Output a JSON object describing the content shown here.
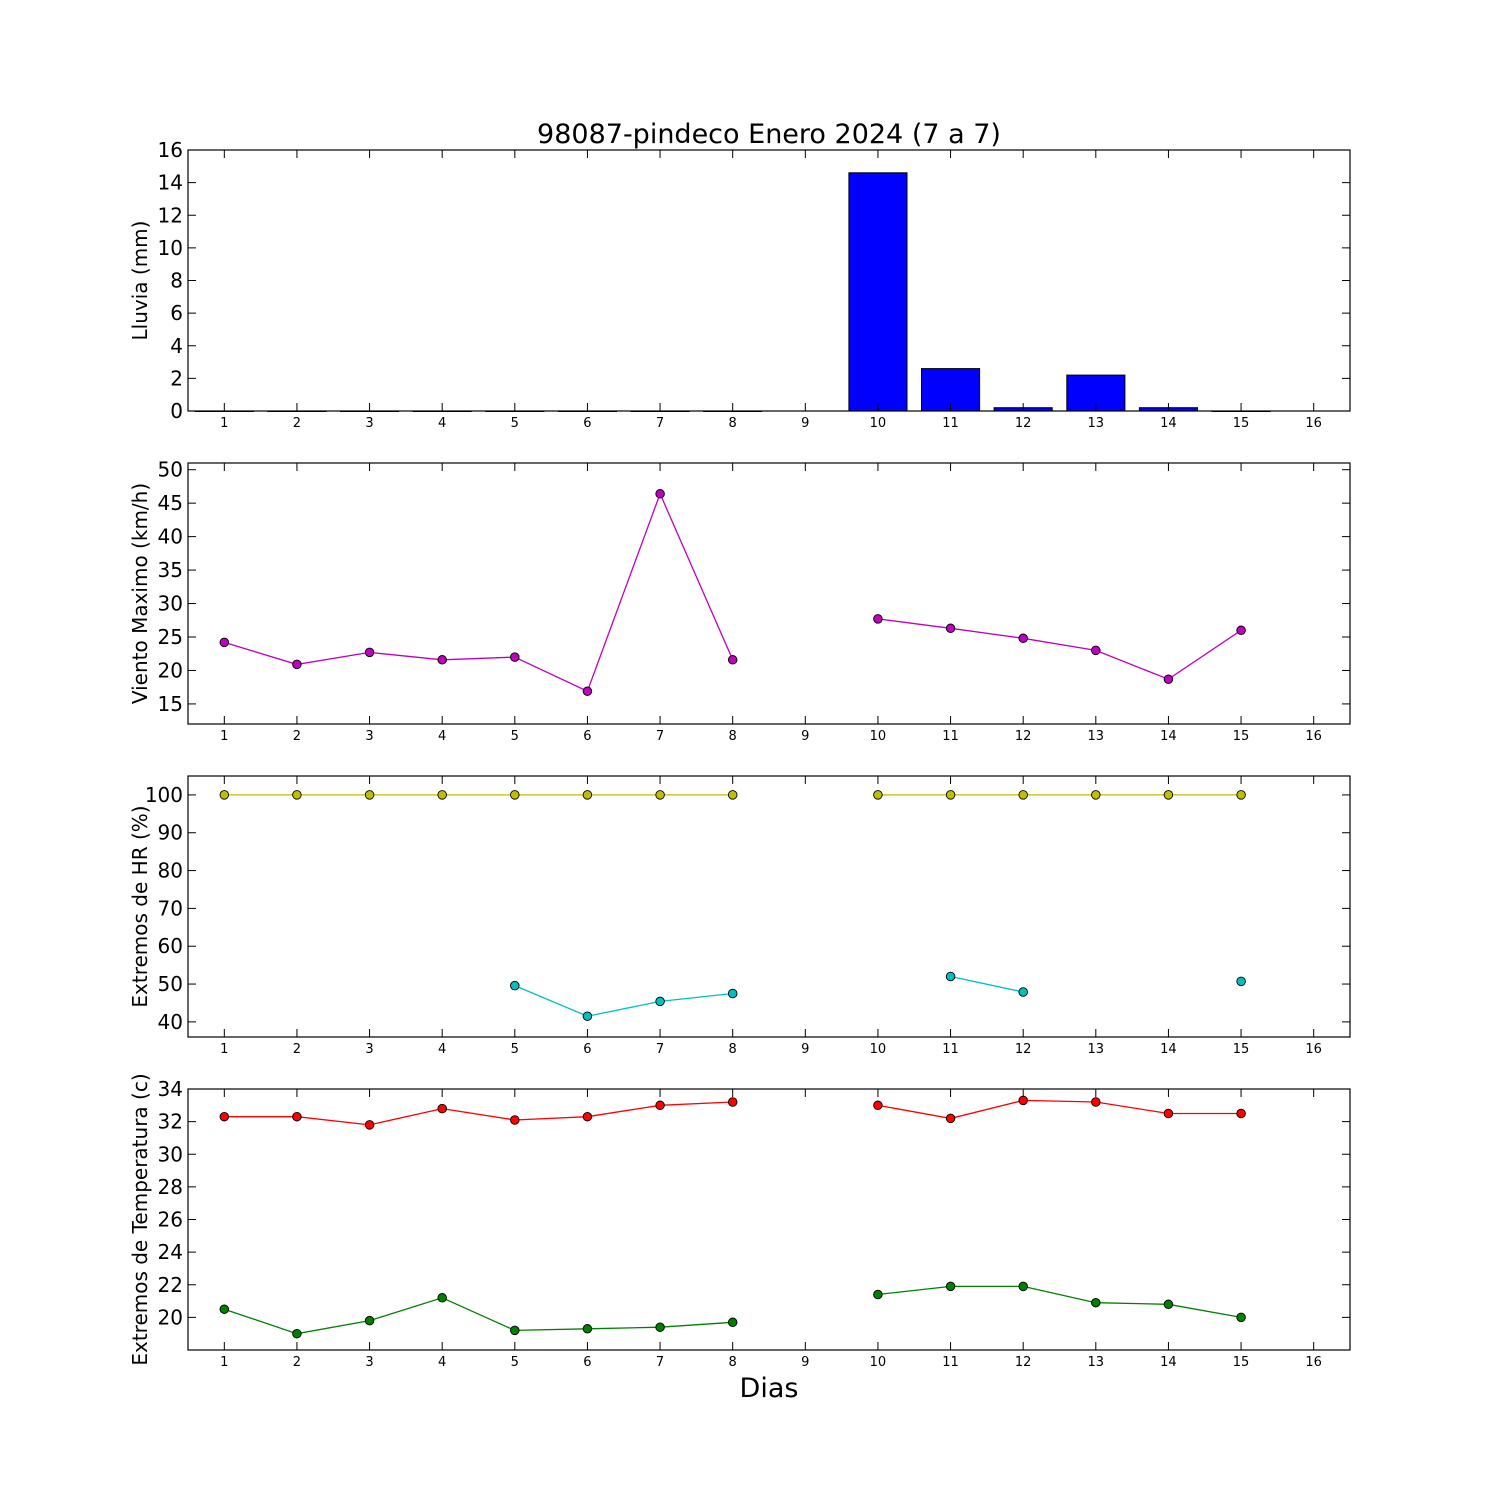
{
  "figure": {
    "title": "98087-pindeco Enero 2024  (7 a 7)",
    "xlabel": "Dias"
  },
  "chart_data": [
    {
      "type": "bar",
      "ylabel": "Lluvia (mm)",
      "ylim": [
        0,
        16
      ],
      "yticks": [
        0,
        2,
        4,
        6,
        8,
        10,
        12,
        14,
        16
      ],
      "xlim": [
        0.5,
        16.5
      ],
      "xticks": [
        1,
        2,
        3,
        4,
        5,
        6,
        7,
        8,
        9,
        10,
        11,
        12,
        13,
        14,
        15,
        16
      ],
      "series": [
        {
          "color": "#0000ff",
          "x": [
            1,
            2,
            3,
            4,
            5,
            6,
            7,
            8,
            10,
            11,
            12,
            13,
            14,
            15
          ],
          "values": [
            0,
            0,
            0,
            0,
            0,
            0,
            0,
            0,
            14.6,
            2.6,
            0.2,
            2.2,
            0.2,
            0
          ]
        }
      ]
    },
    {
      "type": "line",
      "ylabel": "Viento Maximo (km/h)",
      "ylim": [
        12,
        51
      ],
      "yticks": [
        15,
        20,
        25,
        30,
        35,
        40,
        45,
        50
      ],
      "xlim": [
        0.5,
        16.5
      ],
      "xticks": [
        1,
        2,
        3,
        4,
        5,
        6,
        7,
        8,
        9,
        10,
        11,
        12,
        13,
        14,
        15,
        16
      ],
      "series": [
        {
          "color": "#bf00bf",
          "x": [
            1,
            2,
            3,
            4,
            5,
            6,
            7,
            8,
            9,
            10,
            11,
            12,
            13,
            14,
            15
          ],
          "values": [
            24.2,
            20.9,
            22.7,
            21.6,
            22.0,
            16.9,
            46.4,
            21.6,
            null,
            27.7,
            26.3,
            24.8,
            23.0,
            18.7,
            26.0
          ]
        }
      ]
    },
    {
      "type": "line",
      "ylabel": "Extremos de HR (%)",
      "ylim": [
        36,
        105
      ],
      "yticks": [
        40,
        50,
        60,
        70,
        80,
        90,
        100
      ],
      "xlim": [
        0.5,
        16.5
      ],
      "xticks": [
        1,
        2,
        3,
        4,
        5,
        6,
        7,
        8,
        9,
        10,
        11,
        12,
        13,
        14,
        15,
        16
      ],
      "series": [
        {
          "color": "#bfbf00",
          "x": [
            1,
            2,
            3,
            4,
            5,
            6,
            7,
            8,
            9,
            10,
            11,
            12,
            13,
            14,
            15
          ],
          "values": [
            100,
            100,
            100,
            100,
            100,
            100,
            100,
            100,
            null,
            100,
            100,
            100,
            100,
            100,
            100
          ]
        },
        {
          "color": "#00bfbf",
          "x": [
            1,
            2,
            3,
            4,
            5,
            6,
            7,
            8,
            9,
            10,
            11,
            12,
            13,
            14,
            15
          ],
          "values": [
            null,
            null,
            null,
            null,
            49.6,
            41.5,
            45.4,
            47.5,
            null,
            null,
            52.0,
            47.9,
            null,
            null,
            50.7
          ]
        }
      ]
    },
    {
      "type": "line",
      "ylabel": "Extremos de Temperatura (c)",
      "ylim": [
        18,
        34
      ],
      "yticks": [
        20,
        22,
        24,
        26,
        28,
        30,
        32,
        34
      ],
      "xlim": [
        0.5,
        16.5
      ],
      "xticks": [
        1,
        2,
        3,
        4,
        5,
        6,
        7,
        8,
        9,
        10,
        11,
        12,
        13,
        14,
        15,
        16
      ],
      "series": [
        {
          "color": "#ff0000",
          "x": [
            1,
            2,
            3,
            4,
            5,
            6,
            7,
            8,
            9,
            10,
            11,
            12,
            13,
            14,
            15
          ],
          "values": [
            32.3,
            32.3,
            31.8,
            32.8,
            32.1,
            32.3,
            33.0,
            33.2,
            null,
            33.0,
            32.2,
            33.3,
            33.2,
            32.5,
            32.5
          ]
        },
        {
          "color": "#008000",
          "x": [
            1,
            2,
            3,
            4,
            5,
            6,
            7,
            8,
            9,
            10,
            11,
            12,
            13,
            14,
            15
          ],
          "values": [
            20.5,
            19.0,
            19.8,
            21.2,
            19.2,
            19.3,
            19.4,
            19.7,
            null,
            21.4,
            21.9,
            21.9,
            20.9,
            20.8,
            20.0
          ]
        }
      ]
    }
  ]
}
